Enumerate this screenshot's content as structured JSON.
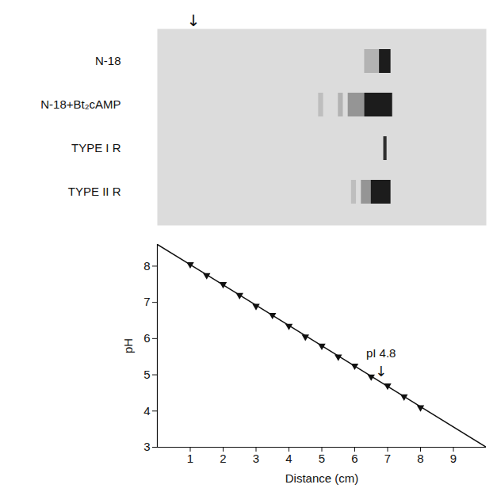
{
  "chart_data": {
    "type": "line",
    "x_label": "Distance (cm)",
    "y_label": "pH",
    "xlim": [
      0,
      10
    ],
    "ylim": [
      3,
      8.6
    ],
    "xticks": [
      1,
      2,
      3,
      4,
      5,
      6,
      7,
      8,
      9
    ],
    "yticks": [
      3,
      4,
      5,
      6,
      7,
      8
    ],
    "grid": false,
    "series": [
      {
        "type": "scatter",
        "marker": "triangle-down",
        "color": "#111111",
        "x": [
          1,
          1.5,
          2,
          2.5,
          3,
          3.5,
          4,
          4.5,
          5,
          5.5,
          6,
          6.5,
          7,
          7.5,
          8
        ],
        "values": [
          8.05,
          7.75,
          7.5,
          7.2,
          6.9,
          6.65,
          6.35,
          6.05,
          5.8,
          5.5,
          5.25,
          4.95,
          4.7,
          4.4,
          4.1
        ]
      },
      {
        "type": "line",
        "line_style": "solid",
        "color": "#111111",
        "x": [
          0,
          10
        ],
        "values": [
          8.6,
          3
        ]
      }
    ],
    "annotations": [
      {
        "text": "pI 4.8",
        "arrow": "↓",
        "x": 6.8,
        "y": 4.8
      }
    ]
  },
  "gel": {
    "origin": {
      "text": "↓",
      "x": 1.1
    },
    "lanes": [
      {
        "label": "N-18",
        "bands": [
          {
            "from": 6.3,
            "to": 6.75,
            "darkness": 0.2
          },
          {
            "from": 6.75,
            "to": 7.1,
            "darkness": 0.95
          }
        ]
      },
      {
        "label": "N-18+Bt₂cAMP",
        "bands": [
          {
            "from": 4.9,
            "to": 5.05,
            "darkness": 0.15
          },
          {
            "from": 5.5,
            "to": 5.65,
            "darkness": 0.2
          },
          {
            "from": 5.8,
            "to": 6.3,
            "darkness": 0.35
          },
          {
            "from": 6.3,
            "to": 7.15,
            "darkness": 0.95
          }
        ]
      },
      {
        "label": "TYPE I R",
        "bands": [
          {
            "from": 6.88,
            "to": 6.98,
            "darkness": 0.85
          }
        ]
      },
      {
        "label": "TYPE II R",
        "bands": [
          {
            "from": 5.9,
            "to": 6.05,
            "darkness": 0.15
          },
          {
            "from": 6.2,
            "to": 6.5,
            "darkness": 0.35
          },
          {
            "from": 6.5,
            "to": 7.1,
            "darkness": 0.95
          }
        ]
      }
    ]
  }
}
